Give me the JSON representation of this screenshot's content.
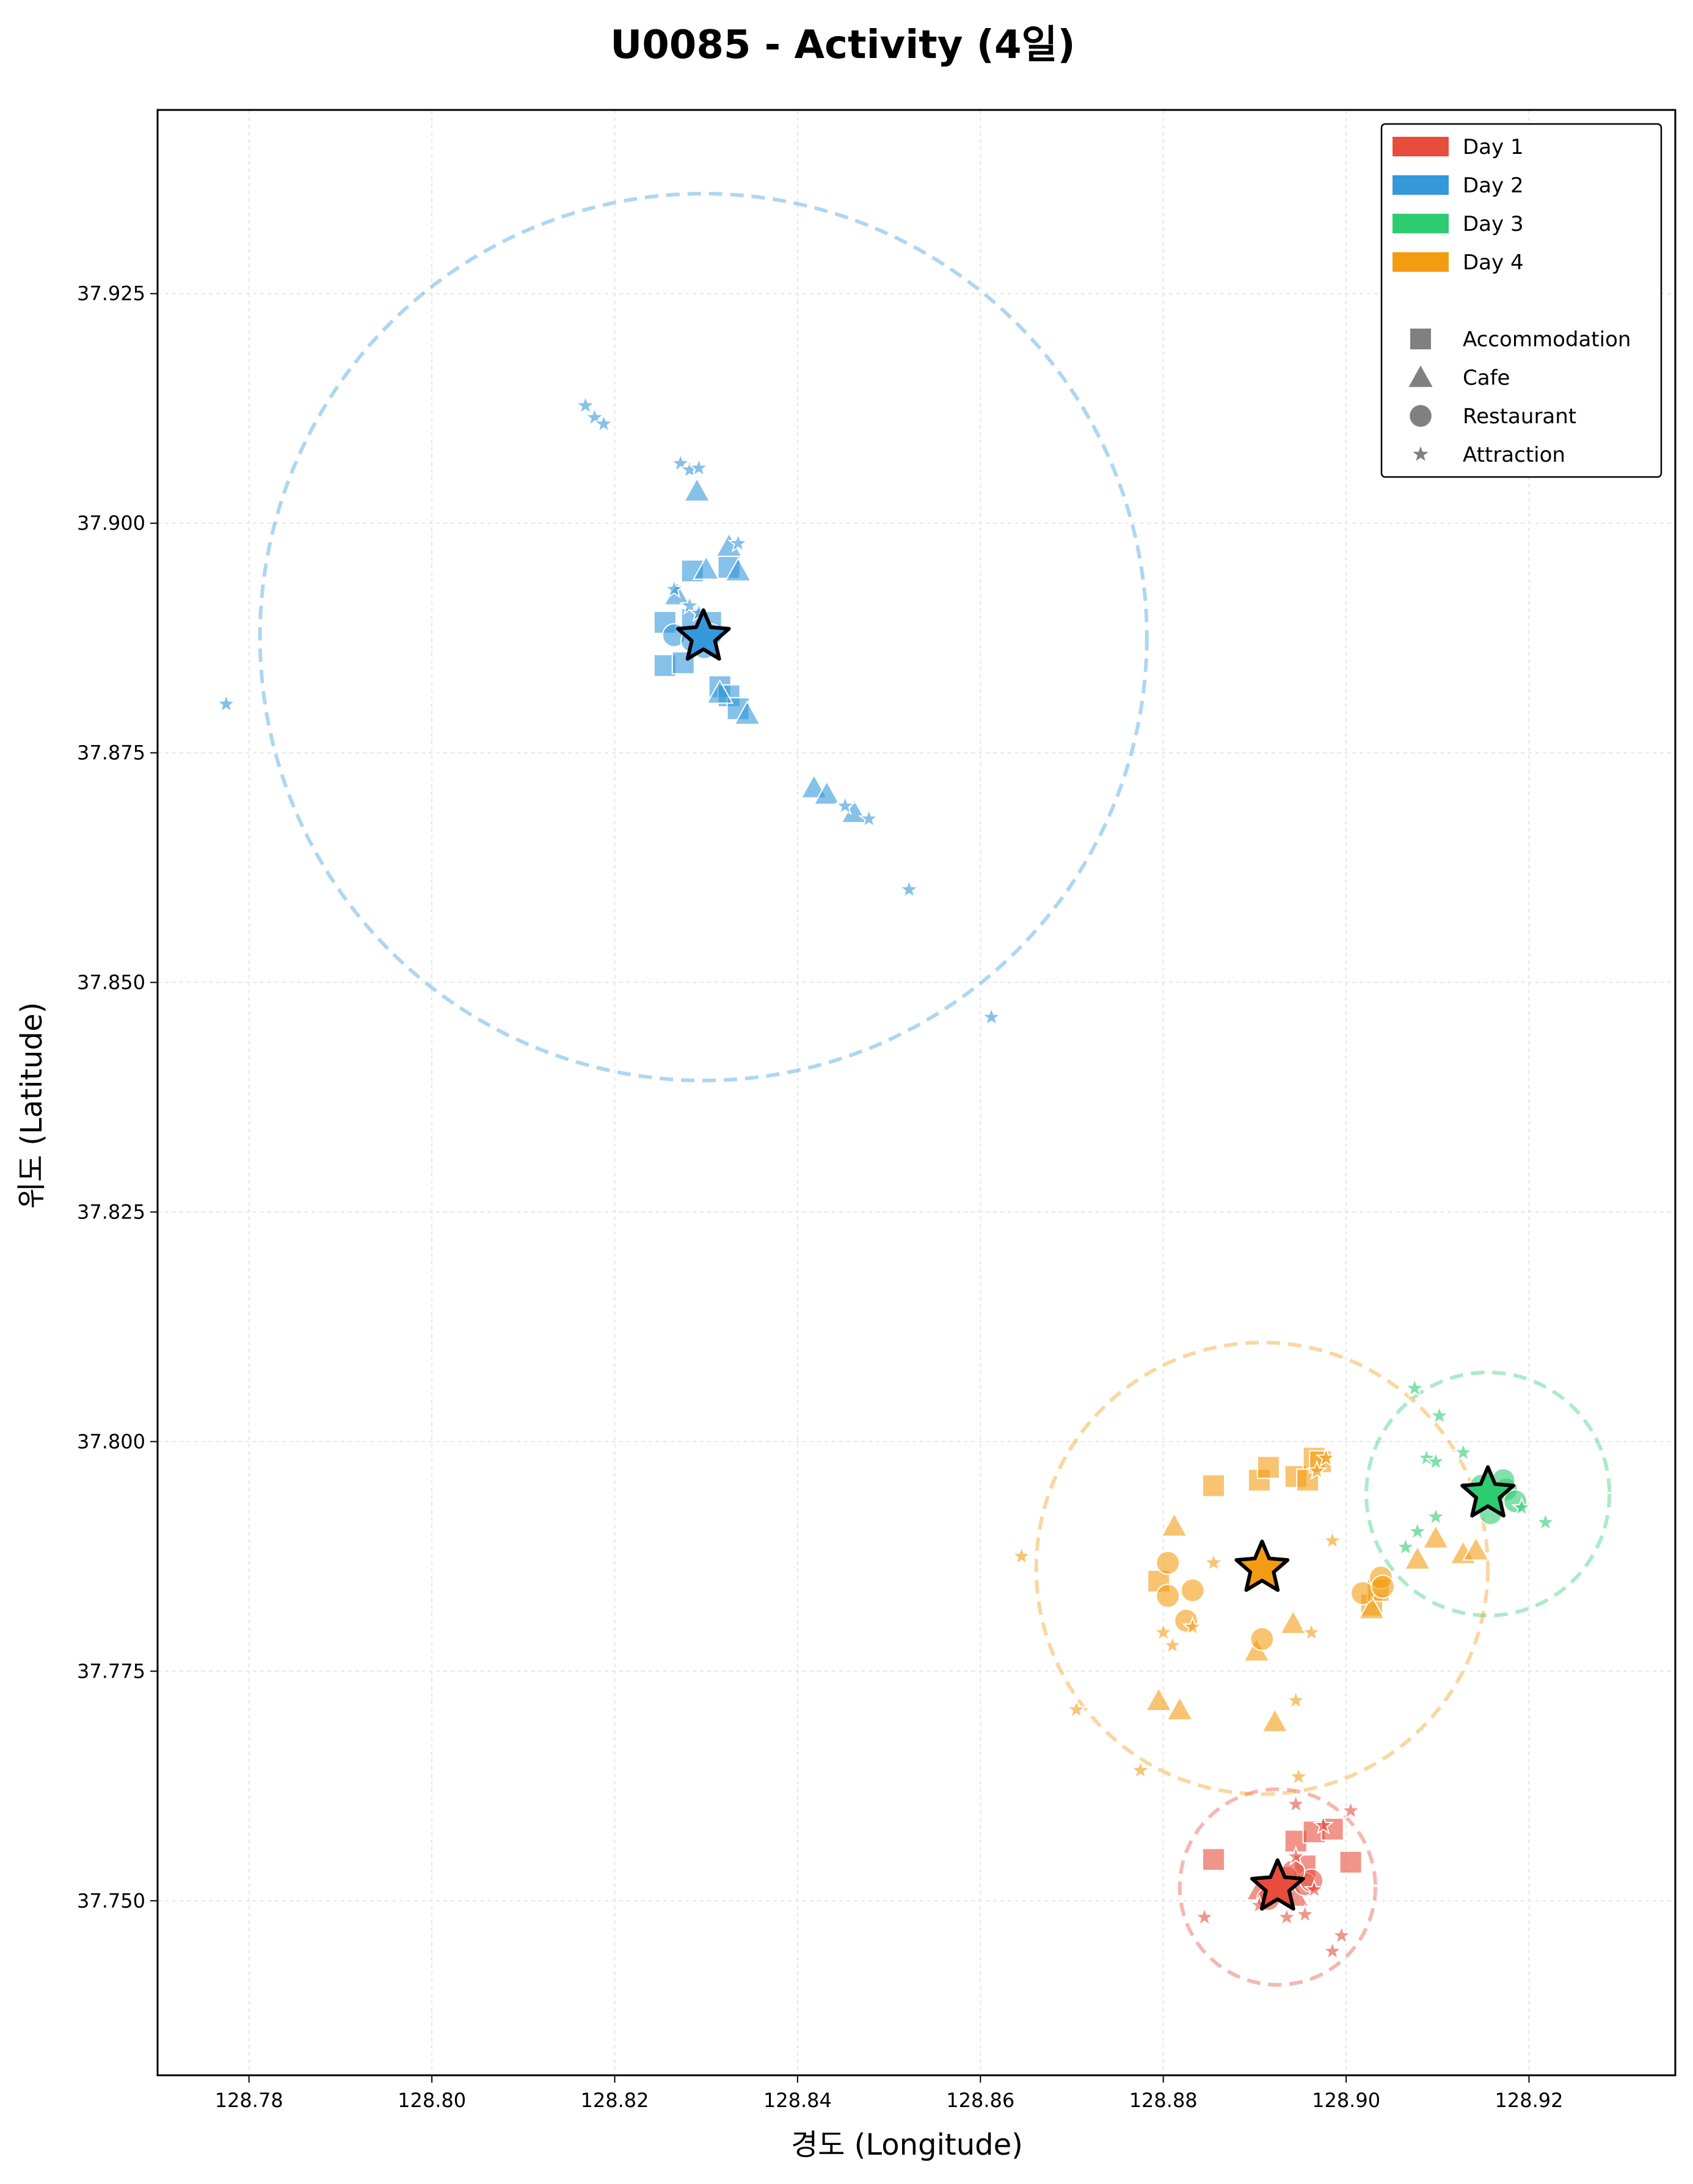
{
  "title": "U0085 - Activity (4일)",
  "chart_data": {
    "type": "scatter",
    "title": "U0085 - Activity (4일)",
    "xlabel": "경도 (Longitude)",
    "ylabel": "위도 (Latitude)",
    "xlim": [
      128.77,
      128.936
    ],
    "ylim": [
      37.731,
      37.945
    ],
    "xticks": [
      "128.78",
      "128.80",
      "128.82",
      "128.84",
      "128.86",
      "128.88",
      "128.90",
      "128.92"
    ],
    "yticks": [
      "37.750",
      "37.775",
      "37.800",
      "37.825",
      "37.850",
      "37.875",
      "37.900",
      "37.925"
    ],
    "grid": true,
    "legend_position": "top-right",
    "legend_days": [
      "Day 1",
      "Day 2",
      "Day 3",
      "Day 4"
    ],
    "legend_types": [
      {
        "label": "Accommodation",
        "marker": "square"
      },
      {
        "label": "Cafe",
        "marker": "triangle"
      },
      {
        "label": "Restaurant",
        "marker": "circle"
      },
      {
        "label": "Attraction",
        "marker": "star"
      }
    ],
    "series": [
      {
        "name": "Day 1",
        "color": "#e74c3c",
        "center": [
          128.8925,
          37.7515
        ],
        "radius": 0.0107,
        "points": [
          {
            "x": 128.8855,
            "y": 37.7545,
            "type": "Accommodation"
          },
          {
            "x": 128.8945,
            "y": 37.7565,
            "type": "Accommodation"
          },
          {
            "x": 128.8965,
            "y": 37.7575,
            "type": "Accommodation"
          },
          {
            "x": 128.8985,
            "y": 37.7578,
            "type": "Accommodation"
          },
          {
            "x": 128.9005,
            "y": 37.7542,
            "type": "Accommodation"
          },
          {
            "x": 128.8955,
            "y": 37.7538,
            "type": "Accommodation"
          },
          {
            "x": 128.8925,
            "y": 37.7528,
            "type": "Cafe"
          },
          {
            "x": 128.8905,
            "y": 37.7512,
            "type": "Cafe"
          },
          {
            "x": 128.8945,
            "y": 37.7505,
            "type": "Cafe"
          },
          {
            "x": 128.8935,
            "y": 37.7525,
            "type": "Restaurant"
          },
          {
            "x": 128.8955,
            "y": 37.7518,
            "type": "Restaurant"
          },
          {
            "x": 128.8962,
            "y": 37.7522,
            "type": "Restaurant"
          },
          {
            "x": 128.8915,
            "y": 37.7502,
            "type": "Restaurant"
          },
          {
            "x": 128.8942,
            "y": 37.7532,
            "type": "Restaurant"
          },
          {
            "x": 128.8945,
            "y": 37.7605,
            "type": "Attraction"
          },
          {
            "x": 128.9005,
            "y": 37.7598,
            "type": "Attraction"
          },
          {
            "x": 128.8975,
            "y": 37.7582,
            "type": "Attraction"
          },
          {
            "x": 128.8945,
            "y": 37.7548,
            "type": "Attraction"
          },
          {
            "x": 128.8845,
            "y": 37.7482,
            "type": "Attraction"
          },
          {
            "x": 128.8935,
            "y": 37.7482,
            "type": "Attraction"
          },
          {
            "x": 128.8955,
            "y": 37.7485,
            "type": "Attraction"
          },
          {
            "x": 128.8995,
            "y": 37.7462,
            "type": "Attraction"
          },
          {
            "x": 128.8985,
            "y": 37.7445,
            "type": "Attraction"
          },
          {
            "x": 128.8905,
            "y": 37.7495,
            "type": "Attraction"
          },
          {
            "x": 128.8965,
            "y": 37.7512,
            "type": "Attraction"
          }
        ]
      },
      {
        "name": "Day 2",
        "color": "#3498db",
        "center": [
          128.8297,
          37.8876
        ],
        "radius": 0.0485,
        "points": [
          {
            "x": 128.8255,
            "y": 37.8892,
            "type": "Accommodation"
          },
          {
            "x": 128.8255,
            "y": 37.8845,
            "type": "Accommodation"
          },
          {
            "x": 128.8275,
            "y": 37.8848,
            "type": "Accommodation"
          },
          {
            "x": 128.8285,
            "y": 37.8948,
            "type": "Accommodation"
          },
          {
            "x": 128.8325,
            "y": 37.8952,
            "type": "Accommodation"
          },
          {
            "x": 128.8315,
            "y": 37.8822,
            "type": "Accommodation"
          },
          {
            "x": 128.8325,
            "y": 37.8812,
            "type": "Accommodation"
          },
          {
            "x": 128.8335,
            "y": 37.8798,
            "type": "Accommodation"
          },
          {
            "x": 128.8285,
            "y": 37.8895,
            "type": "Accommodation"
          },
          {
            "x": 128.8305,
            "y": 37.8892,
            "type": "Accommodation"
          },
          {
            "x": 128.829,
            "y": 37.9035,
            "type": "Cafe"
          },
          {
            "x": 128.83,
            "y": 37.895,
            "type": "Cafe"
          },
          {
            "x": 128.8335,
            "y": 37.8948,
            "type": "Cafe"
          },
          {
            "x": 128.8325,
            "y": 37.8975,
            "type": "Cafe"
          },
          {
            "x": 128.8315,
            "y": 37.8815,
            "type": "Cafe"
          },
          {
            "x": 128.8345,
            "y": 37.8792,
            "type": "Cafe"
          },
          {
            "x": 128.8418,
            "y": 37.8712,
            "type": "Cafe"
          },
          {
            "x": 128.8432,
            "y": 37.8705,
            "type": "Cafe"
          },
          {
            "x": 128.8462,
            "y": 37.8685,
            "type": "Cafe"
          },
          {
            "x": 128.8268,
            "y": 37.8922,
            "type": "Cafe"
          },
          {
            "x": 128.8265,
            "y": 37.8878,
            "type": "Restaurant"
          },
          {
            "x": 128.8285,
            "y": 37.8872,
            "type": "Restaurant"
          },
          {
            "x": 128.8298,
            "y": 37.8865,
            "type": "Restaurant"
          },
          {
            "x": 128.8305,
            "y": 37.8878,
            "type": "Restaurant"
          },
          {
            "x": 128.8168,
            "y": 37.9128,
            "type": "Attraction"
          },
          {
            "x": 128.8178,
            "y": 37.9115,
            "type": "Attraction"
          },
          {
            "x": 128.8188,
            "y": 37.9108,
            "type": "Attraction"
          },
          {
            "x": 128.8272,
            "y": 37.9065,
            "type": "Attraction"
          },
          {
            "x": 128.8282,
            "y": 37.9058,
            "type": "Attraction"
          },
          {
            "x": 128.8292,
            "y": 37.906,
            "type": "Attraction"
          },
          {
            "x": 128.8335,
            "y": 37.8978,
            "type": "Attraction"
          },
          {
            "x": 128.8265,
            "y": 37.8928,
            "type": "Attraction"
          },
          {
            "x": 128.8282,
            "y": 37.891,
            "type": "Attraction"
          },
          {
            "x": 128.8292,
            "y": 37.8902,
            "type": "Attraction"
          },
          {
            "x": 128.8452,
            "y": 37.8692,
            "type": "Attraction"
          },
          {
            "x": 128.8478,
            "y": 37.8678,
            "type": "Attraction"
          },
          {
            "x": 128.8522,
            "y": 37.8601,
            "type": "Attraction"
          },
          {
            "x": 128.8612,
            "y": 37.8462,
            "type": "Attraction"
          },
          {
            "x": 128.7775,
            "y": 37.8803,
            "type": "Attraction"
          }
        ]
      },
      {
        "name": "Day 3",
        "color": "#2ecc71",
        "center": [
          128.9155,
          37.7943
        ],
        "radius": 0.0133,
        "points": [
          {
            "x": 128.9148,
            "y": 37.7952,
            "type": "Restaurant"
          },
          {
            "x": 128.9162,
            "y": 37.7938,
            "type": "Restaurant"
          },
          {
            "x": 128.9175,
            "y": 37.7948,
            "type": "Restaurant"
          },
          {
            "x": 128.9185,
            "y": 37.7935,
            "type": "Restaurant"
          },
          {
            "x": 128.9158,
            "y": 37.7922,
            "type": "Restaurant"
          },
          {
            "x": 128.9172,
            "y": 37.7958,
            "type": "Restaurant"
          },
          {
            "x": 128.9075,
            "y": 37.8058,
            "type": "Attraction"
          },
          {
            "x": 128.9102,
            "y": 37.8028,
            "type": "Attraction"
          },
          {
            "x": 128.9088,
            "y": 37.7982,
            "type": "Attraction"
          },
          {
            "x": 128.9098,
            "y": 37.7978,
            "type": "Attraction"
          },
          {
            "x": 128.9128,
            "y": 37.7988,
            "type": "Attraction"
          },
          {
            "x": 128.9098,
            "y": 37.7918,
            "type": "Attraction"
          },
          {
            "x": 128.9078,
            "y": 37.7902,
            "type": "Attraction"
          },
          {
            "x": 128.9065,
            "y": 37.7885,
            "type": "Attraction"
          },
          {
            "x": 128.9218,
            "y": 37.7912,
            "type": "Attraction"
          },
          {
            "x": 128.9192,
            "y": 37.7928,
            "type": "Attraction"
          }
        ]
      },
      {
        "name": "Day 4",
        "color": "#f39c12",
        "center": [
          128.8908,
          37.7862
        ],
        "radius": 0.0247,
        "points": [
          {
            "x": 128.8855,
            "y": 37.7952,
            "type": "Accommodation"
          },
          {
            "x": 128.8905,
            "y": 37.7958,
            "type": "Accommodation"
          },
          {
            "x": 128.8915,
            "y": 37.7972,
            "type": "Accommodation"
          },
          {
            "x": 128.8945,
            "y": 37.7962,
            "type": "Accommodation"
          },
          {
            "x": 128.8958,
            "y": 37.7958,
            "type": "Accommodation"
          },
          {
            "x": 128.8965,
            "y": 37.7982,
            "type": "Accommodation"
          },
          {
            "x": 128.8972,
            "y": 37.7978,
            "type": "Accommodation"
          },
          {
            "x": 128.8795,
            "y": 37.7848,
            "type": "Accommodation"
          },
          {
            "x": 128.9028,
            "y": 37.7822,
            "type": "Accommodation"
          },
          {
            "x": 128.9035,
            "y": 37.7838,
            "type": "Accommodation"
          },
          {
            "x": 128.8812,
            "y": 37.7908,
            "type": "Cafe"
          },
          {
            "x": 128.8795,
            "y": 37.7718,
            "type": "Cafe"
          },
          {
            "x": 128.8818,
            "y": 37.7708,
            "type": "Cafe"
          },
          {
            "x": 128.8922,
            "y": 37.7695,
            "type": "Cafe"
          },
          {
            "x": 128.8902,
            "y": 37.7772,
            "type": "Cafe"
          },
          {
            "x": 128.8942,
            "y": 37.7802,
            "type": "Cafe"
          },
          {
            "x": 128.9028,
            "y": 37.7818,
            "type": "Cafe"
          },
          {
            "x": 128.9078,
            "y": 37.7872,
            "type": "Cafe"
          },
          {
            "x": 128.9098,
            "y": 37.7895,
            "type": "Cafe"
          },
          {
            "x": 128.9128,
            "y": 37.7878,
            "type": "Cafe"
          },
          {
            "x": 128.9142,
            "y": 37.7882,
            "type": "Cafe"
          },
          {
            "x": 128.8805,
            "y": 37.7868,
            "type": "Restaurant"
          },
          {
            "x": 128.8805,
            "y": 37.7832,
            "type": "Restaurant"
          },
          {
            "x": 128.8825,
            "y": 37.7805,
            "type": "Restaurant"
          },
          {
            "x": 128.8832,
            "y": 37.7838,
            "type": "Restaurant"
          },
          {
            "x": 128.8908,
            "y": 37.7785,
            "type": "Restaurant"
          },
          {
            "x": 128.9018,
            "y": 37.7835,
            "type": "Restaurant"
          },
          {
            "x": 128.9038,
            "y": 37.7852,
            "type": "Restaurant"
          },
          {
            "x": 128.904,
            "y": 37.7842,
            "type": "Restaurant"
          },
          {
            "x": 128.8645,
            "y": 37.7875,
            "type": "Attraction"
          },
          {
            "x": 128.8855,
            "y": 37.7868,
            "type": "Attraction"
          },
          {
            "x": 128.88,
            "y": 37.7792,
            "type": "Attraction"
          },
          {
            "x": 128.881,
            "y": 37.7778,
            "type": "Attraction"
          },
          {
            "x": 128.8832,
            "y": 37.7798,
            "type": "Attraction"
          },
          {
            "x": 128.8962,
            "y": 37.7792,
            "type": "Attraction"
          },
          {
            "x": 128.8985,
            "y": 37.7892,
            "type": "Attraction"
          },
          {
            "x": 128.8968,
            "y": 37.7968,
            "type": "Attraction"
          },
          {
            "x": 128.8978,
            "y": 37.7982,
            "type": "Attraction"
          },
          {
            "x": 128.8945,
            "y": 37.7718,
            "type": "Attraction"
          },
          {
            "x": 128.8705,
            "y": 37.7708,
            "type": "Attraction"
          },
          {
            "x": 128.8775,
            "y": 37.7642,
            "type": "Attraction"
          },
          {
            "x": 128.8948,
            "y": 37.7635,
            "type": "Attraction"
          }
        ]
      }
    ]
  }
}
